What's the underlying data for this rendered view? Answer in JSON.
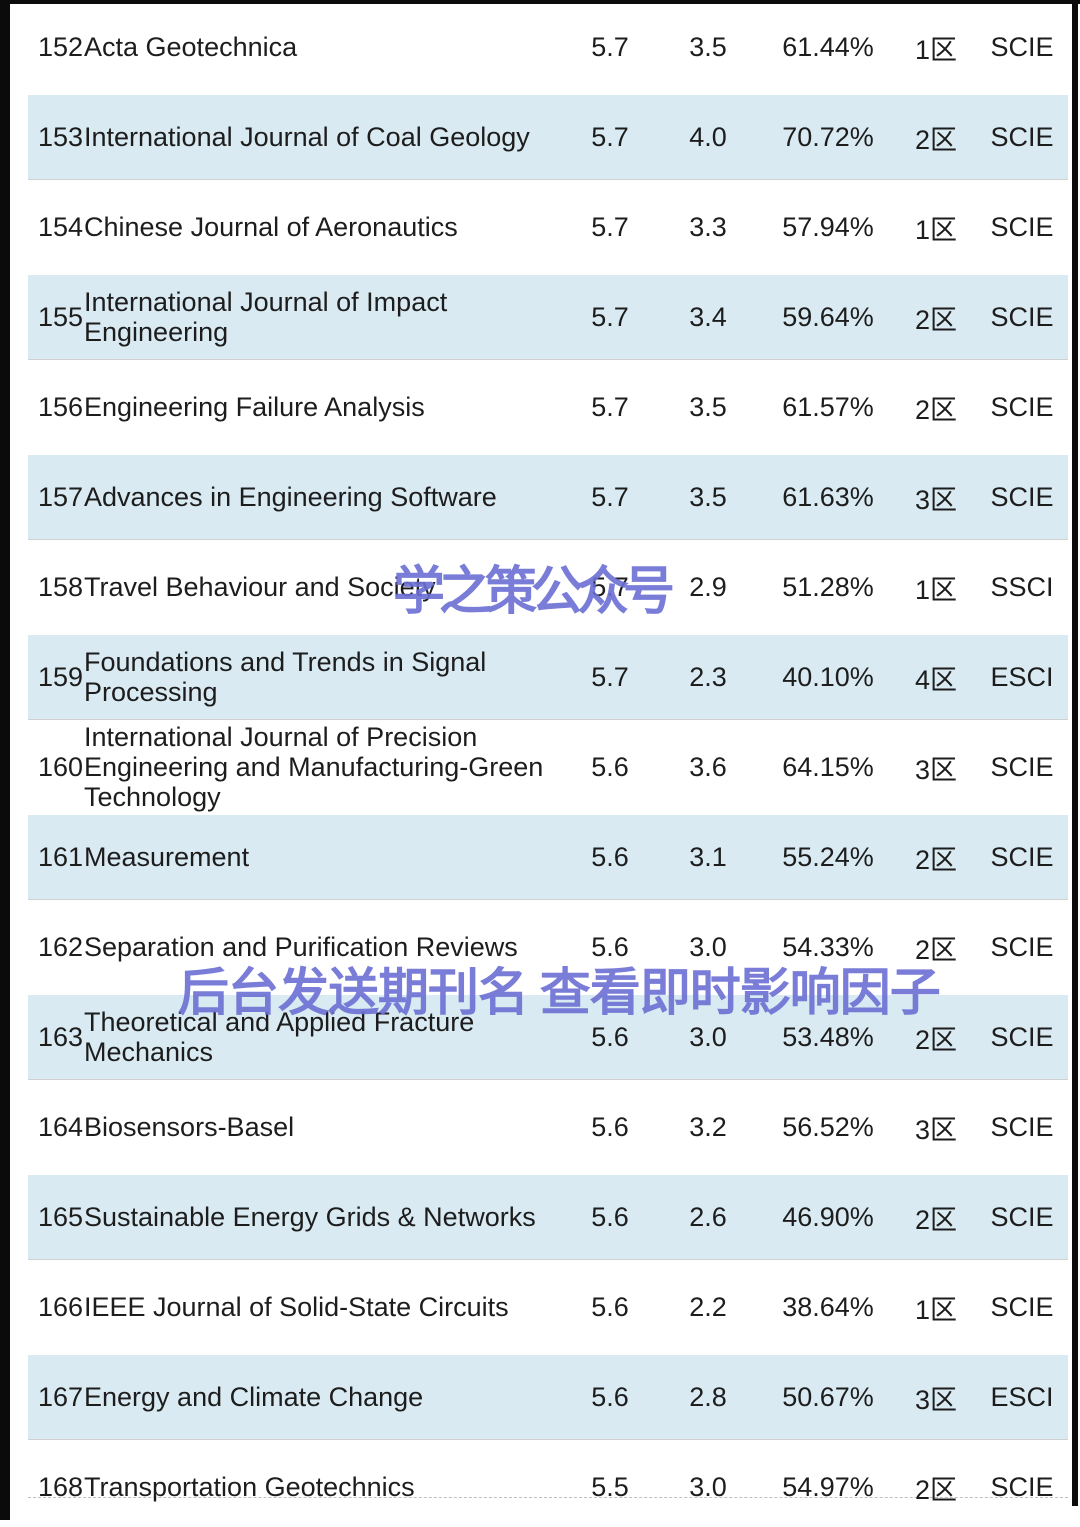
{
  "page": {
    "background": "#ffffff",
    "frame_color": "#0b0b0b"
  },
  "colors": {
    "row_highlight": "#d9eaf2",
    "text": "#1d1d1d",
    "watermark": "#6c70d4"
  },
  "watermarks": {
    "center": "学之策公众号",
    "bottom": "后台发送期刊名 查看即时影响因子"
  },
  "table": {
    "fields": [
      "rank",
      "name",
      "impact_factor",
      "jci",
      "percentile",
      "zone",
      "index"
    ],
    "rows": [
      {
        "rank": "152",
        "name": "Acta Geotechnica",
        "impact_factor": "5.7",
        "jci": "3.5",
        "percentile": "61.44%",
        "zone": "1区",
        "index": "SCIE"
      },
      {
        "rank": "153",
        "name": "International Journal of Coal Geology",
        "impact_factor": "5.7",
        "jci": "4.0",
        "percentile": "70.72%",
        "zone": "2区",
        "index": "SCIE"
      },
      {
        "rank": "154",
        "name": "Chinese Journal of Aeronautics",
        "impact_factor": "5.7",
        "jci": "3.3",
        "percentile": "57.94%",
        "zone": "1区",
        "index": "SCIE"
      },
      {
        "rank": "155",
        "name": "International Journal of Impact Engineering",
        "impact_factor": "5.7",
        "jci": "3.4",
        "percentile": "59.64%",
        "zone": "2区",
        "index": "SCIE"
      },
      {
        "rank": "156",
        "name": "Engineering Failure Analysis",
        "impact_factor": "5.7",
        "jci": "3.5",
        "percentile": "61.57%",
        "zone": "2区",
        "index": "SCIE"
      },
      {
        "rank": "157",
        "name": "Advances in Engineering Software",
        "impact_factor": "5.7",
        "jci": "3.5",
        "percentile": "61.63%",
        "zone": "3区",
        "index": "SCIE"
      },
      {
        "rank": "158",
        "name": "Travel Behaviour and Society",
        "impact_factor": "5.7",
        "jci": "2.9",
        "percentile": "51.28%",
        "zone": "1区",
        "index": "SSCI"
      },
      {
        "rank": "159",
        "name": "Foundations and Trends in Signal Processing",
        "impact_factor": "5.7",
        "jci": "2.3",
        "percentile": "40.10%",
        "zone": "4区",
        "index": "ESCI"
      },
      {
        "rank": "160",
        "name": "International Journal of Precision Engineering and Manufacturing-Green Technology",
        "impact_factor": "5.6",
        "jci": "3.6",
        "percentile": "64.15%",
        "zone": "3区",
        "index": "SCIE"
      },
      {
        "rank": "161",
        "name": "Measurement",
        "impact_factor": "5.6",
        "jci": "3.1",
        "percentile": "55.24%",
        "zone": "2区",
        "index": "SCIE"
      },
      {
        "rank": "162",
        "name": "Separation and Purification Reviews",
        "impact_factor": "5.6",
        "jci": "3.0",
        "percentile": "54.33%",
        "zone": "2区",
        "index": "SCIE"
      },
      {
        "rank": "163",
        "name": "Theoretical and Applied Fracture Mechanics",
        "impact_factor": "5.6",
        "jci": "3.0",
        "percentile": "53.48%",
        "zone": "2区",
        "index": "SCIE"
      },
      {
        "rank": "164",
        "name": "Biosensors-Basel",
        "impact_factor": "5.6",
        "jci": "3.2",
        "percentile": "56.52%",
        "zone": "3区",
        "index": "SCIE"
      },
      {
        "rank": "165",
        "name": "Sustainable Energy Grids & Networks",
        "impact_factor": "5.6",
        "jci": "2.6",
        "percentile": "46.90%",
        "zone": "2区",
        "index": "SCIE"
      },
      {
        "rank": "166",
        "name": "IEEE Journal of Solid-State Circuits",
        "impact_factor": "5.6",
        "jci": "2.2",
        "percentile": "38.64%",
        "zone": "1区",
        "index": "SCIE"
      },
      {
        "rank": "167",
        "name": "Energy and Climate Change",
        "impact_factor": "5.6",
        "jci": "2.8",
        "percentile": "50.67%",
        "zone": "3区",
        "index": "ESCI"
      },
      {
        "rank": "168",
        "name": "Transportation Geotechnics",
        "impact_factor": "5.5",
        "jci": "3.0",
        "percentile": "54.97%",
        "zone": "2区",
        "index": "SCIE"
      }
    ]
  }
}
